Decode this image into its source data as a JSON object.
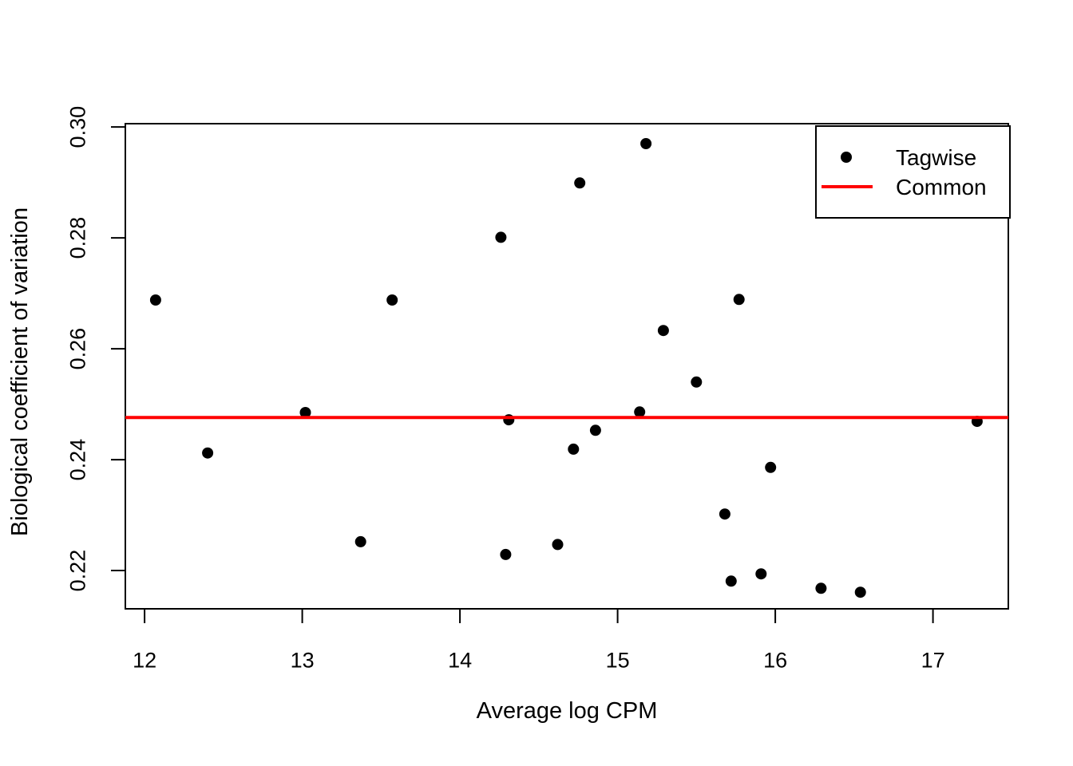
{
  "figure": {
    "xlabel": "Average log CPM",
    "ylabel": "Biological coefficient of variation",
    "legend": {
      "items": [
        {
          "label": "Tagwise",
          "marker": "point",
          "color": "#000000"
        },
        {
          "label": "Common",
          "marker": "line",
          "color": "#ff0000"
        }
      ]
    }
  },
  "colors": {
    "background": "#ffffff",
    "foreground": "#000000",
    "common_line": "#ff0000"
  },
  "chart_data": {
    "type": "scatter",
    "title": "",
    "xlabel": "Average log CPM",
    "ylabel": "Biological coefficient of variation",
    "xlim": [
      11.878,
      17.478
    ],
    "ylim": [
      0.2131,
      0.3006
    ],
    "x_ticks": [
      12,
      13,
      14,
      15,
      16,
      17
    ],
    "x_tick_labels": [
      "12",
      "13",
      "14",
      "15",
      "16",
      "17"
    ],
    "y_ticks": [
      0.22,
      0.24,
      0.26,
      0.28,
      0.3
    ],
    "y_tick_labels": [
      "0.22",
      "0.24",
      "0.26",
      "0.28",
      "0.30"
    ],
    "grid": false,
    "legend_position": "topright",
    "series": [
      {
        "name": "Tagwise",
        "type": "scatter",
        "color": "#000000",
        "points": [
          [
            12.07,
            0.2688
          ],
          [
            12.4,
            0.2412
          ],
          [
            13.02,
            0.2485
          ],
          [
            13.37,
            0.2252
          ],
          [
            13.57,
            0.2688
          ],
          [
            14.26,
            0.2801
          ],
          [
            14.29,
            0.2229
          ],
          [
            14.31,
            0.2472
          ],
          [
            14.62,
            0.2247
          ],
          [
            14.72,
            0.2419
          ],
          [
            14.76,
            0.2899
          ],
          [
            14.86,
            0.2453
          ],
          [
            15.14,
            0.2486
          ],
          [
            15.18,
            0.297
          ],
          [
            15.29,
            0.2633
          ],
          [
            15.5,
            0.254
          ],
          [
            15.68,
            0.2302
          ],
          [
            15.72,
            0.2181
          ],
          [
            15.77,
            0.2689
          ],
          [
            15.91,
            0.2194
          ],
          [
            15.97,
            0.2386
          ],
          [
            16.29,
            0.2168
          ],
          [
            16.54,
            0.2161
          ],
          [
            17.28,
            0.2469
          ]
        ]
      },
      {
        "name": "Common",
        "type": "hline",
        "color": "#ff0000",
        "y": 0.2476
      }
    ]
  }
}
